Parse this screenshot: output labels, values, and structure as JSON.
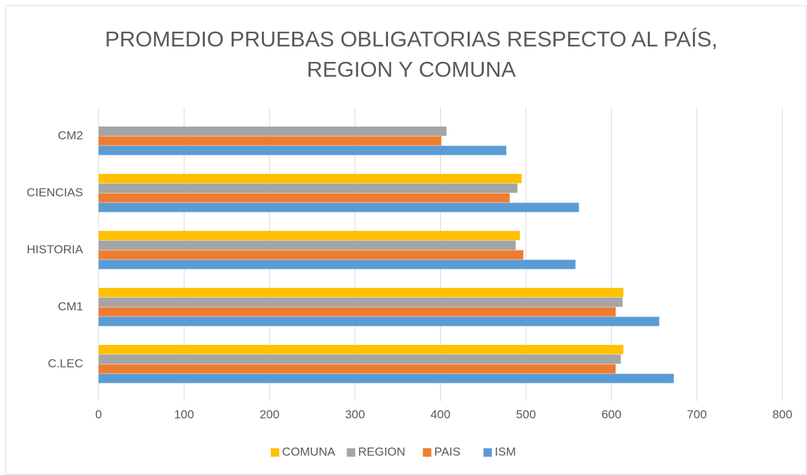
{
  "chart_data": {
    "type": "hbar",
    "title": [
      "PROMEDIO PRUEBAS OBLIGATORIAS RESPECTO AL PAÍS,",
      "REGION Y COMUNA"
    ],
    "categories": [
      "C.LEC",
      "CM1",
      "HISTORIA",
      "CIENCIAS",
      "CM2"
    ],
    "series": [
      {
        "name": "COMUNA",
        "color": "#ffc000",
        "values": [
          614,
          614,
          493,
          495,
          null
        ]
      },
      {
        "name": "REGION",
        "color": "#a5a5a5",
        "values": [
          611,
          613,
          488,
          490,
          407
        ]
      },
      {
        "name": "PAIS",
        "color": "#ed7d31",
        "values": [
          605,
          605,
          497,
          481,
          401
        ]
      },
      {
        "name": "ISM",
        "color": "#5b9bd5",
        "values": [
          673,
          656,
          558,
          562,
          477
        ]
      }
    ],
    "xlim": [
      0,
      800
    ],
    "xticks": [
      0,
      100,
      200,
      300,
      400,
      500,
      600,
      700,
      800
    ],
    "grid": true,
    "legend": "bottom"
  }
}
